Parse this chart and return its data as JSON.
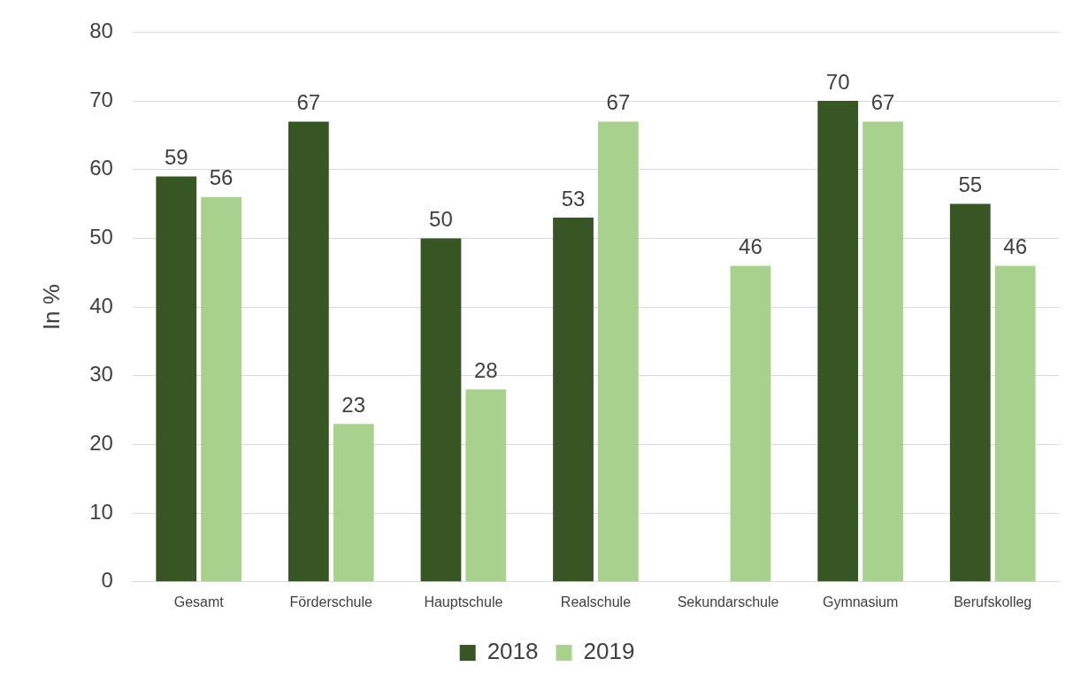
{
  "chart_data": {
    "type": "bar",
    "ylabel": "In %",
    "categories": [
      "Gesamt",
      "Förderschule",
      "Hauptschule",
      "Realschule",
      "Sekundarschule",
      "Gymnasium",
      "Berufskolleg"
    ],
    "series": [
      {
        "name": "2018",
        "color": "#375623",
        "values": [
          59,
          67,
          50,
          53,
          null,
          70,
          55
        ]
      },
      {
        "name": "2019",
        "color": "#a9d18e",
        "values": [
          56,
          23,
          28,
          67,
          46,
          67,
          46
        ]
      }
    ],
    "ylim": [
      0,
      80
    ],
    "yticks": [
      0,
      10,
      20,
      30,
      40,
      50,
      60,
      70,
      80
    ],
    "grid": "y",
    "legend": "bottom",
    "data_labels": true
  }
}
